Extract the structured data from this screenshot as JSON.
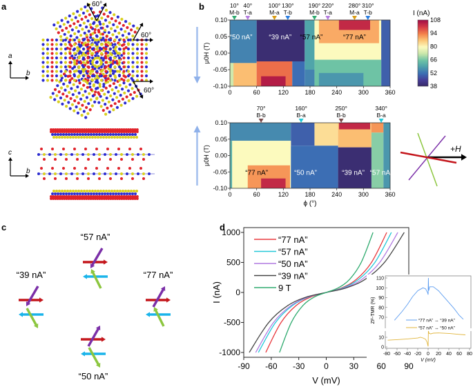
{
  "panel_labels": {
    "a": "a",
    "b": "b",
    "c": "c",
    "d": "d"
  },
  "panel_a": {
    "angle_labels": [
      "60°",
      "60°",
      "60°"
    ],
    "top_axes": {
      "vertical": "a",
      "horizontal": "b"
    },
    "side_axes": {
      "vertical": "c",
      "horizontal": "b"
    },
    "atom_colors": {
      "blue": "#2b2bd0",
      "yellow": "#d8cf1e",
      "red": "#e0222a"
    }
  },
  "panel_b": {
    "colorbar": {
      "label": "I (nA)",
      "ticks": [
        108,
        94,
        80,
        66,
        52,
        38
      ],
      "range": [
        38,
        108
      ]
    },
    "arrow_colors": {
      "sweep": "#8fb1ea"
    },
    "field_diagram": {
      "label": "+H",
      "colors": {
        "red": "#c4161c",
        "purple": "#7b2fa8",
        "green": "#8cc63f",
        "arrow": "#000000"
      }
    }
  },
  "chart_data": [
    {
      "type": "heatmap",
      "panel": "b-top",
      "sweep_direction": "down",
      "xlabel": "",
      "ylabel": "μ0H (T)",
      "xlim": [
        0,
        360
      ],
      "ylim": [
        -0.1,
        0.1
      ],
      "xticks": [
        "0",
        "60",
        "120",
        "180",
        "240",
        "300",
        "360"
      ],
      "yticks": [
        "0.10",
        "0.05",
        "0.00",
        "-0.05",
        "-0.10"
      ],
      "markers": [
        {
          "angle": "10°",
          "label": "M-b",
          "phi": 10,
          "color": "#2eaa6e"
        },
        {
          "angle": "40°",
          "label": "T-a",
          "phi": 40,
          "color": "#b57be0"
        },
        {
          "angle": "100°",
          "label": "M-a",
          "phi": 100,
          "color": "#d89b12"
        },
        {
          "angle": "130°",
          "label": "T-b",
          "phi": 130,
          "color": "#2a7de0"
        },
        {
          "angle": "190°",
          "label": "M-b",
          "phi": 190,
          "color": "#2eaa6e"
        },
        {
          "angle": "220°",
          "label": "T-a",
          "phi": 220,
          "color": "#b57be0"
        },
        {
          "angle": "280°",
          "label": "M-a",
          "phi": 280,
          "color": "#d89b12"
        },
        {
          "angle": "310°",
          "label": "T-b",
          "phi": 310,
          "color": "#2a7de0"
        }
      ],
      "regions": [
        {
          "phi": [
            0,
            60
          ],
          "H": [
            -0.03,
            0.1
          ],
          "I": 55
        },
        {
          "phi": [
            60,
            168
          ],
          "H": [
            -0.025,
            0.1
          ],
          "I": 40
        },
        {
          "phi": [
            168,
            190
          ],
          "H": [
            -0.05,
            0.1
          ],
          "I": 60
        },
        {
          "phi": [
            190,
            340
          ],
          "H": [
            -0.02,
            0.1
          ],
          "I": 80
        },
        {
          "phi": [
            200,
            335
          ],
          "H": [
            0.03,
            0.1
          ],
          "I": 90
        },
        {
          "phi": [
            245,
            315
          ],
          "H": [
            0.07,
            0.1
          ],
          "I": 104
        },
        {
          "phi": [
            340,
            360
          ],
          "H": [
            -0.1,
            0.1
          ],
          "I": 50
        },
        {
          "phi": [
            0,
            60
          ],
          "H": [
            -0.1,
            -0.03
          ],
          "I": 88
        },
        {
          "phi": [
            0,
            8
          ],
          "H": [
            -0.1,
            -0.03
          ],
          "I": 74
        },
        {
          "phi": [
            60,
            140
          ],
          "H": [
            -0.1,
            -0.025
          ],
          "I": 96
        },
        {
          "phi": [
            70,
            125
          ],
          "H": [
            -0.1,
            -0.07
          ],
          "I": 106
        },
        {
          "phi": [
            140,
            168
          ],
          "H": [
            -0.1,
            -0.025
          ],
          "I": 52
        },
        {
          "phi": [
            168,
            190
          ],
          "H": [
            -0.1,
            -0.05
          ],
          "I": 55
        },
        {
          "phi": [
            190,
            340
          ],
          "H": [
            -0.1,
            -0.02
          ],
          "I": 66
        },
        {
          "phi": [
            200,
            300
          ],
          "H": [
            -0.1,
            -0.06
          ],
          "I": 58
        }
      ],
      "annotations": [
        {
          "text": "“50 nA”",
          "phi": 25,
          "H": 0.05,
          "color": "#ffffff"
        },
        {
          "text": "“39 nA”",
          "phi": 113,
          "H": 0.05,
          "color": "#ffffff"
        },
        {
          "text": "“57 nA”",
          "phi": 183,
          "H": 0.05,
          "color": "#000000"
        },
        {
          "text": "“77 nA”",
          "phi": 280,
          "H": 0.05,
          "color": "#000000"
        }
      ]
    },
    {
      "type": "heatmap",
      "panel": "b-bottom",
      "sweep_direction": "up",
      "xlabel": "ϕ (°)",
      "ylabel": "μ0H (T)",
      "xlim": [
        0,
        360
      ],
      "ylim": [
        -0.1,
        0.1
      ],
      "xticks": [
        "0",
        "60",
        "120",
        "180",
        "240",
        "300",
        "360"
      ],
      "yticks": [
        "0.10",
        "0.05",
        "0.00",
        "-0.05",
        "-0.10"
      ],
      "markers": [
        {
          "angle": "70°",
          "label": "B-b",
          "phi": 70,
          "color": "#7a4a4a"
        },
        {
          "angle": "160°",
          "label": "B-a",
          "phi": 160,
          "color": "#1fc8d8"
        },
        {
          "angle": "250°",
          "label": "B-b",
          "phi": 250,
          "color": "#7a4a4a"
        },
        {
          "angle": "340°",
          "label": "B-a",
          "phi": 340,
          "color": "#1fc8d8"
        }
      ],
      "regions": [
        {
          "phi": [
            0,
            137
          ],
          "H": [
            0.045,
            0.1
          ],
          "I": 56
        },
        {
          "phi": [
            137,
            190
          ],
          "H": [
            0.03,
            0.1
          ],
          "I": 50
        },
        {
          "phi": [
            190,
            243
          ],
          "H": [
            0.03,
            0.1
          ],
          "I": 84
        },
        {
          "phi": [
            243,
            318
          ],
          "H": [
            0.025,
            0.1
          ],
          "I": 88
        },
        {
          "phi": [
            245,
            315
          ],
          "H": [
            0.08,
            0.1
          ],
          "I": 104
        },
        {
          "phi": [
            318,
            345
          ],
          "H": [
            0.07,
            0.1
          ],
          "I": 92
        },
        {
          "phi": [
            0,
            5
          ],
          "H": [
            -0.1,
            0.045
          ],
          "I": 62
        },
        {
          "phi": [
            5,
            137
          ],
          "H": [
            -0.1,
            0.045
          ],
          "I": 80
        },
        {
          "phi": [
            40,
            135
          ],
          "H": [
            -0.1,
            -0.03
          ],
          "I": 92
        },
        {
          "phi": [
            70,
            125
          ],
          "H": [
            -0.1,
            -0.07
          ],
          "I": 104
        },
        {
          "phi": [
            137,
            243
          ],
          "H": [
            -0.1,
            0.03
          ],
          "I": 52
        },
        {
          "phi": [
            243,
            318
          ],
          "H": [
            -0.1,
            0.025
          ],
          "I": 40
        },
        {
          "phi": [
            318,
            345
          ],
          "H": [
            -0.1,
            0.07
          ],
          "I": 68
        },
        {
          "phi": [
            345,
            360
          ],
          "H": [
            -0.1,
            0.1
          ],
          "I": 58
        }
      ],
      "annotations": [
        {
          "text": "“77 nA”",
          "phi": 60,
          "H": -0.05,
          "color": "#000000"
        },
        {
          "text": "“50 nA”",
          "phi": 170,
          "H": -0.05,
          "color": "#ffffff"
        },
        {
          "text": "“39 nA”",
          "phi": 277,
          "H": -0.05,
          "color": "#ffffff"
        },
        {
          "text": "“57 nA”",
          "phi": 340,
          "H": -0.05,
          "color": "#ffffff"
        }
      ]
    },
    {
      "type": "line",
      "panel": "d",
      "xlabel": "V (mV)",
      "ylabel": "I (nA)",
      "xlim": [
        -90,
        90
      ],
      "ylim": [
        -1080,
        1080
      ],
      "xticks": [
        "-90",
        "-60",
        "-30",
        "0",
        "30",
        "60",
        "90"
      ],
      "yticks": [
        "1000",
        "500",
        "0",
        "-500",
        "-1000"
      ],
      "legend": "top-left",
      "I_values": [
        -1000,
        -504,
        -219,
        -74,
        0,
        74,
        219,
        504,
        1000
      ],
      "series": [
        {
          "name": "“77 nA”",
          "color": "#e8383d",
          "V": [
            -66,
            -49.5,
            -33,
            -16.5,
            0,
            16.5,
            33,
            49.5,
            66
          ]
        },
        {
          "name": "“57 nA”",
          "color": "#22c8d8",
          "V": [
            -74,
            -55.5,
            -37,
            -18.5,
            0,
            17.75,
            35.5,
            53.25,
            71
          ]
        },
        {
          "name": "“50 nA”",
          "color": "#b07ae0",
          "V": [
            -77,
            -57.75,
            -38.5,
            -19.25,
            0,
            19.5,
            39,
            58.5,
            78
          ]
        },
        {
          "name": "“39 nA”",
          "color": "#444444",
          "V": [
            -84,
            -63,
            -42,
            -21,
            0,
            21.25,
            42.5,
            63.75,
            85
          ]
        },
        {
          "name": "9 T",
          "color": "#2eaa6e",
          "V": [
            -51,
            -38.25,
            -25.5,
            -12.75,
            0,
            12.75,
            25.5,
            38.25,
            51
          ]
        }
      ]
    },
    {
      "type": "line",
      "panel": "d-inset",
      "xlabel": "V (mV)",
      "ylabel": "ZF-TMR (%)",
      "xlim": [
        -80,
        80
      ],
      "ylim_upper": [
        65,
        110
      ],
      "ylim_lower": [
        0,
        15
      ],
      "xticks": [
        "-80",
        "-60",
        "-40",
        "-20",
        "0",
        "20",
        "40",
        "60",
        "80"
      ],
      "yticks_upper": [
        "110",
        "100",
        "90",
        "80",
        "70"
      ],
      "yticks_lower": [
        "10",
        "0"
      ],
      "legend": "middle-right",
      "series": [
        {
          "name": "“77 nA” ↔ “39 nA”",
          "color": "#5b9cf0",
          "points": [
            [
              -65,
              67
            ],
            [
              -50,
              76
            ],
            [
              -40,
              83
            ],
            [
              -30,
              91
            ],
            [
              -20,
              97
            ],
            [
              -10,
              100
            ],
            [
              -5,
              99
            ],
            [
              -1,
              95
            ],
            [
              0,
              93
            ],
            [
              0.5,
              110
            ],
            [
              1,
              97
            ],
            [
              3,
              101
            ],
            [
              10,
              101
            ],
            [
              20,
              97
            ],
            [
              30,
              91
            ],
            [
              40,
              85
            ],
            [
              50,
              79
            ],
            [
              60,
              72
            ],
            [
              68,
              68
            ]
          ]
        },
        {
          "name": "“57 nA” ↔ “50 nA”",
          "color": "#e0b43a",
          "points": [
            [
              -78,
              7
            ],
            [
              -60,
              7.6
            ],
            [
              -40,
              8.3
            ],
            [
              -20,
              9.2
            ],
            [
              -15,
              10
            ],
            [
              -10,
              9.3
            ],
            [
              -5,
              8
            ],
            [
              -2,
              5
            ],
            [
              0,
              0.5
            ],
            [
              0.5,
              16.5
            ],
            [
              2,
              14
            ],
            [
              5,
              13.5
            ],
            [
              10,
              14.3
            ],
            [
              20,
              14.5
            ],
            [
              40,
              14
            ],
            [
              60,
              13
            ],
            [
              72,
              12.5
            ]
          ]
        }
      ]
    }
  ],
  "panel_c": {
    "states": [
      {
        "label": "“57 nA”",
        "purple": "down",
        "green": "up"
      },
      {
        "label": "“39 nA”",
        "purple": "down",
        "green": "down"
      },
      {
        "label": "“77 nA”",
        "purple": "up",
        "green": "up"
      },
      {
        "label": "“50 nA”",
        "purple": "up",
        "green": "down"
      }
    ],
    "colors": {
      "red": "#c4161c",
      "cyan": "#1ab4ea",
      "purple": "#7b2fa8",
      "green": "#8cc63f"
    }
  }
}
